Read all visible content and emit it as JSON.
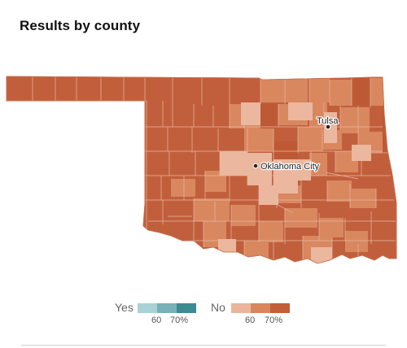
{
  "title": "Results by county",
  "cities": [
    {
      "name": "Tulsa"
    },
    {
      "name": "Oklahoma City"
    }
  ],
  "legend": {
    "yes": {
      "label": "Yes",
      "colors": [
        "#a9d2d5",
        "#77b1b7",
        "#3e8a92"
      ],
      "ticks": [
        "60",
        "70%"
      ]
    },
    "no": {
      "label": "No",
      "colors": [
        "#eab59c",
        "#d9865f",
        "#c35e38"
      ],
      "ticks": [
        "60",
        "70%"
      ]
    }
  },
  "colors": {
    "no_base": "#c15f3c",
    "no_mid": "#d9875f",
    "no_light": "#ebb79e",
    "county_border": "#e9b9a2"
  }
}
